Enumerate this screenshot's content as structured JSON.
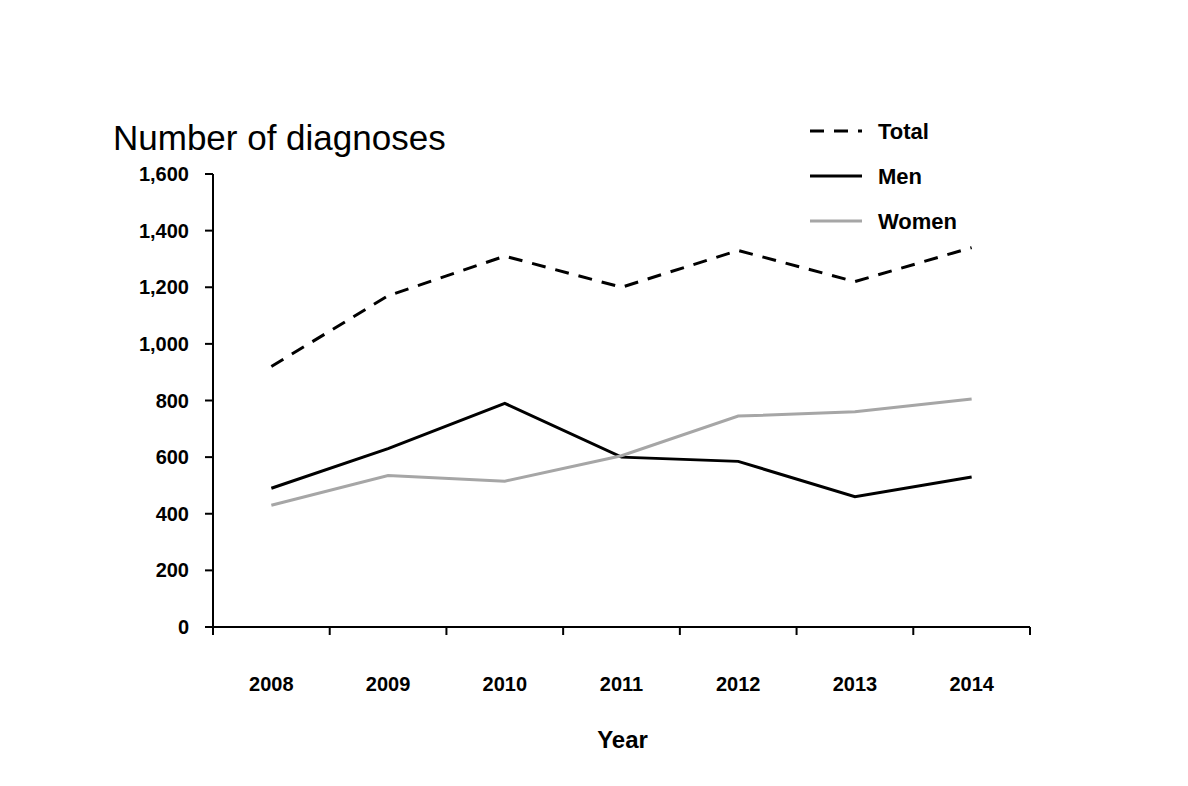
{
  "chart_data": {
    "type": "line",
    "title": "Number of diagnoses",
    "x_label": "Year",
    "categories": [
      "2008",
      "2009",
      "2010",
      "2011",
      "2012",
      "2013",
      "2014"
    ],
    "series": [
      {
        "name": "Total",
        "color": "#000000",
        "line_style": "dashed",
        "values": [
          920,
          1170,
          1310,
          1200,
          1330,
          1220,
          1340
        ]
      },
      {
        "name": "Men",
        "color": "#000000",
        "line_style": "solid",
        "values": [
          490,
          630,
          790,
          600,
          585,
          460,
          530
        ]
      },
      {
        "name": "Women",
        "color": "#a6a6a6",
        "line_style": "solid",
        "values": [
          430,
          535,
          515,
          605,
          745,
          760,
          805
        ]
      }
    ],
    "ylim": [
      0,
      1600
    ],
    "yticks": [
      0,
      200,
      400,
      600,
      800,
      {
        "value": 1000,
        "label": "1,000"
      },
      {
        "value": 1200,
        "label": "1,200"
      },
      {
        "value": 1400,
        "label": "1,400"
      },
      {
        "value": 1600,
        "label": "1,600"
      }
    ],
    "grid": false,
    "legend": "top-right"
  }
}
